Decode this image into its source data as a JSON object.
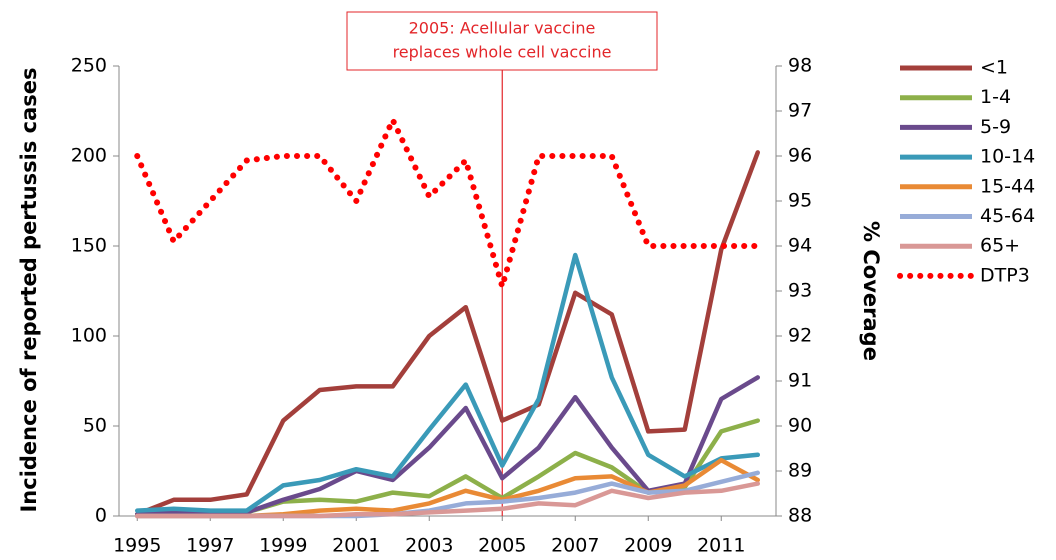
{
  "chart_data": {
    "type": "line",
    "annotation": {
      "text": [
        "2005: Acellular vaccine",
        "replaces whole cell vaccine"
      ],
      "x": 2005,
      "color": "#e3262a"
    },
    "y_label": "Incidence of reported pertussis cases",
    "y2_label": "% Coverage",
    "x": [
      1995,
      1996,
      1997,
      1998,
      1999,
      2000,
      2001,
      2002,
      2003,
      2004,
      2005,
      2006,
      2007,
      2008,
      2009,
      2010,
      2011,
      2012
    ],
    "xlim": [
      1994.5,
      2012.5
    ],
    "xticks": [
      1995,
      1997,
      1999,
      2001,
      2003,
      2005,
      2007,
      2009,
      2011
    ],
    "ylim": [
      0,
      250
    ],
    "yticks": [
      0,
      50,
      100,
      150,
      200,
      250
    ],
    "y2lim": [
      88,
      98
    ],
    "y2ticks": [
      88,
      89,
      90,
      91,
      92,
      93,
      94,
      95,
      96,
      97,
      98
    ],
    "legend": "right",
    "series": [
      {
        "name": "<1",
        "color": "#a33f3b",
        "values": [
          1,
          9,
          9,
          12,
          53,
          70,
          72,
          72,
          100,
          116,
          53,
          62,
          124,
          112,
          47,
          48,
          148,
          202
        ]
      },
      {
        "name": "1-4",
        "color": "#8db04a",
        "values": [
          1,
          2,
          2,
          2,
          8,
          9,
          8,
          13,
          11,
          22,
          10,
          22,
          35,
          27,
          13,
          16,
          47,
          53
        ]
      },
      {
        "name": "5-9",
        "color": "#6a4a8c",
        "values": [
          1,
          2,
          2,
          2,
          9,
          15,
          25,
          20,
          38,
          60,
          21,
          38,
          66,
          38,
          14,
          18,
          65,
          77
        ]
      },
      {
        "name": "10-14",
        "color": "#3a9ab8",
        "values": [
          3,
          4,
          3,
          3,
          17,
          20,
          26,
          22,
          48,
          73,
          28,
          65,
          145,
          77,
          34,
          22,
          32,
          34
        ]
      },
      {
        "name": "15-44",
        "color": "#e98a35",
        "values": [
          0,
          0,
          0,
          0,
          1,
          3,
          4,
          3,
          7,
          14,
          9,
          14,
          21,
          22,
          13,
          17,
          31,
          20
        ]
      },
      {
        "name": "45-64",
        "color": "#97acd8",
        "values": [
          0,
          0,
          0,
          0,
          0,
          0,
          0,
          1,
          3,
          7,
          8,
          10,
          13,
          18,
          13,
          14,
          19,
          24
        ]
      },
      {
        "name": "65+",
        "color": "#d99896",
        "values": [
          0,
          0,
          0,
          0,
          0,
          0,
          1,
          1,
          2,
          3,
          4,
          7,
          6,
          14,
          10,
          13,
          14,
          18
        ]
      },
      {
        "name": "DTP3",
        "color": "#ff0000",
        "axis": "y2",
        "style": "dotted",
        "values": [
          96,
          94.1,
          95,
          95.9,
          96,
          96,
          95,
          96.8,
          95.1,
          95.9,
          93.1,
          96,
          96,
          96,
          94,
          94,
          94,
          94
        ]
      }
    ]
  }
}
